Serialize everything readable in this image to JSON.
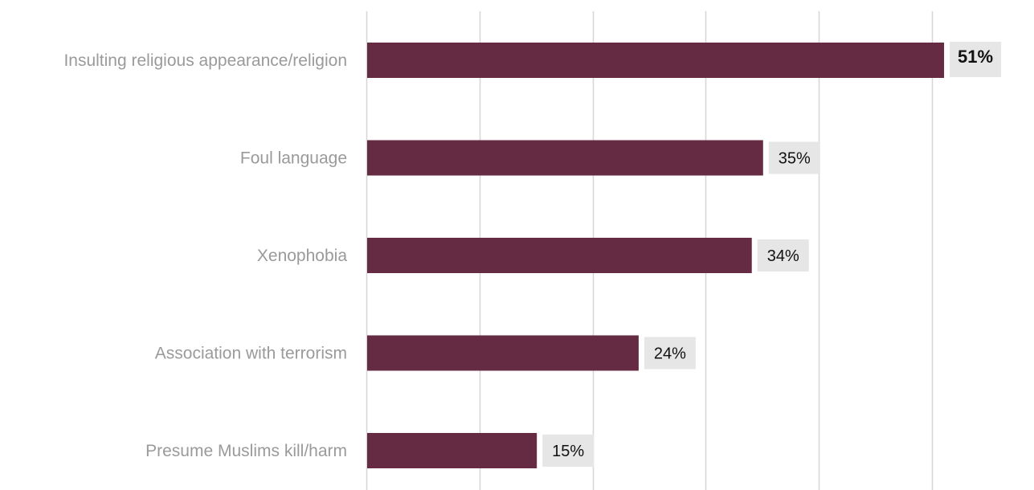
{
  "chart_data": {
    "type": "bar",
    "orientation": "horizontal",
    "categories": [
      "Insulting religious appearance/religion",
      "Foul language",
      "Xenophobia",
      "Association with terrorism",
      "Presume Muslims kill/harm"
    ],
    "values": [
      51,
      35,
      34,
      24,
      15
    ],
    "value_labels": [
      "51%",
      "35%",
      "34%",
      "24%",
      "15%"
    ],
    "xlim": [
      0,
      50
    ],
    "gridlines": [
      0,
      10,
      20,
      30,
      40,
      50
    ],
    "grid": true,
    "legend": "none",
    "colors": {
      "bar": "#652b42",
      "label_bg": "#e6e6e6",
      "grid": "#d6d6d6",
      "category_text": "#9a9a9a",
      "value_text": "#111111"
    }
  }
}
